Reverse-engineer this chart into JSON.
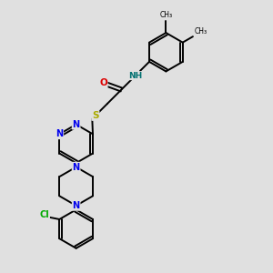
{
  "background_color": "#e0e0e0",
  "bond_color": "#000000",
  "N_color": "#0000ee",
  "O_color": "#dd0000",
  "S_color": "#aaaa00",
  "Cl_color": "#00aa00",
  "NH_color": "#007070",
  "line_width": 1.4,
  "figsize": [
    3.0,
    3.0
  ],
  "dpi": 100,
  "xlim": [
    0,
    10
  ],
  "ylim": [
    0,
    10
  ]
}
